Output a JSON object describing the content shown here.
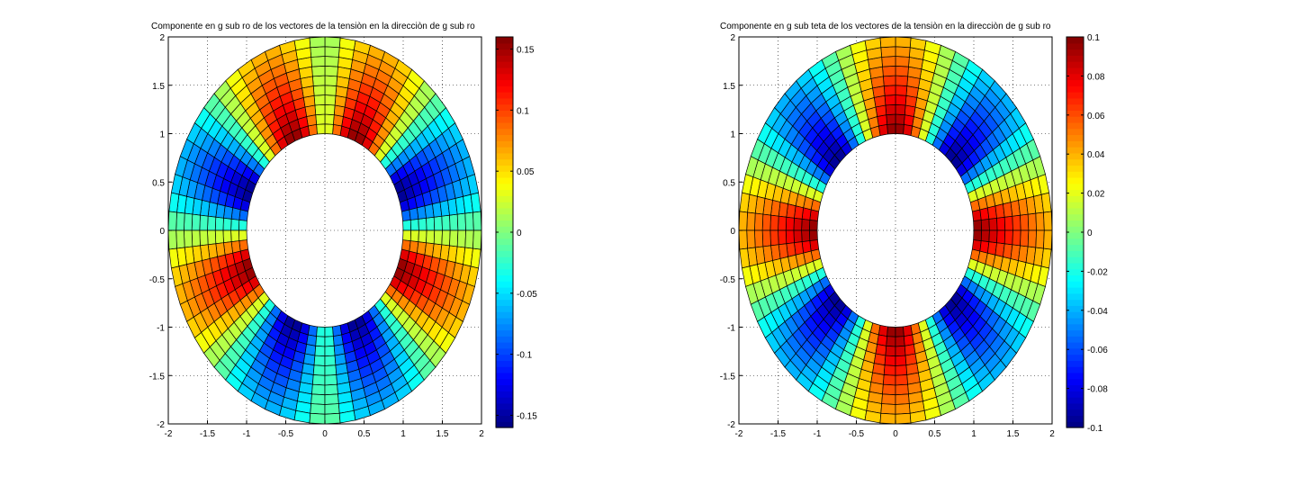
{
  "chart_data": [
    {
      "type": "heatmap",
      "title": "Componente en g sub ro de los vectores de la tensiòn en la direcciòn de g sub ro",
      "xlim": [
        -2,
        2
      ],
      "ylim": [
        -2,
        2
      ],
      "xticks": [
        "-2",
        "-1.5",
        "-1",
        "-0.5",
        "0",
        "0.5",
        "1",
        "1.5",
        "2"
      ],
      "yticks": [
        "-2",
        "-1.5",
        "-1",
        "-0.5",
        "0",
        "0.5",
        "1",
        "1.5",
        "2"
      ],
      "grid": true,
      "colormap": "jet",
      "clim": [
        -0.16,
        0.16
      ],
      "colorbar_ticks": [
        "0.15",
        "0.1",
        "0.05",
        "0",
        "-0.05",
        "-0.1",
        "-0.15"
      ],
      "geometry": {
        "shape": "elliptical annulus",
        "outer_semi_axis_x": 2,
        "outer_semi_axis_y": 2,
        "inner_semi_axis_x": 1,
        "inner_semi_axis_y": 1,
        "radial_divisions": 10,
        "angular_divisions": 64
      },
      "field": {
        "description": "value = amplitude * cos(2*theta) * sin(2*theta - phase) decaying from inner to outer radius",
        "max": 0.16,
        "min": -0.16,
        "pattern": "cos2theta_sin2theta"
      }
    },
    {
      "type": "heatmap",
      "title": "Componente en g sub teta de los vectores de la tensiòn en la direcciòn de g sub ro",
      "xlim": [
        -2,
        2
      ],
      "ylim": [
        -2,
        2
      ],
      "xticks": [
        "-2",
        "-1.5",
        "-1",
        "-0.5",
        "0",
        "0.5",
        "1",
        "1.5",
        "2"
      ],
      "yticks": [
        "-2",
        "-1.5",
        "-1",
        "-0.5",
        "0",
        "0.5",
        "1",
        "1.5",
        "2"
      ],
      "grid": true,
      "colormap": "jet",
      "clim": [
        -0.1,
        0.1
      ],
      "colorbar_ticks": [
        "0.1",
        "0.08",
        "0.06",
        "0.04",
        "0.02",
        "0",
        "-0.02",
        "-0.04",
        "-0.06",
        "-0.08",
        "-0.1"
      ],
      "geometry": {
        "shape": "elliptical annulus",
        "outer_semi_axis_x": 2,
        "outer_semi_axis_y": 2,
        "inner_semi_axis_x": 1,
        "inner_semi_axis_y": 1,
        "radial_divisions": 10,
        "angular_divisions": 64
      },
      "field": {
        "description": "value = amplitude * sin(4*theta) pattern decaying from inner to outer radius",
        "max": 0.1,
        "min": -0.1,
        "pattern": "sin4theta"
      }
    }
  ]
}
